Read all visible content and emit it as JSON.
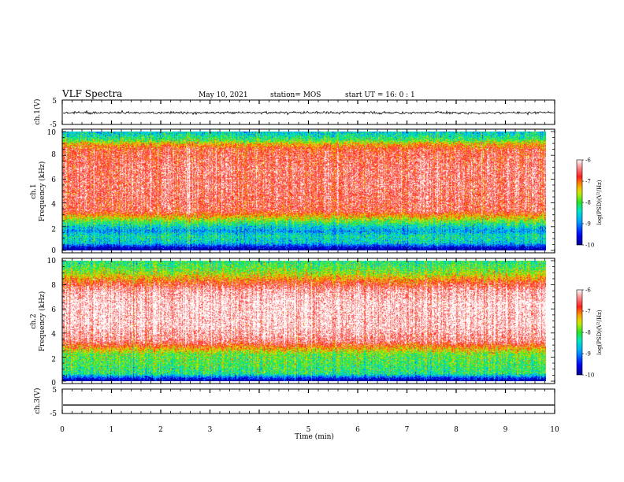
{
  "header": {
    "title": "VLF Spectra",
    "date": "May 10, 2021",
    "station": "station= MOS",
    "start": "start  UT =   16: 0  : 1"
  },
  "chart_data": [
    {
      "type": "line",
      "panel": "ch1-waveform",
      "ylabel": "ch.1(V)",
      "yticks": [
        "5",
        "-5"
      ],
      "ylim": [
        -5,
        5
      ],
      "series": [
        {
          "values_description_free": true,
          "level": -0.2,
          "noise": 0.25
        }
      ]
    },
    {
      "type": "heatmap",
      "panel": "ch1-spectrogram",
      "ylabel": "ch.1\nFrequency  (kHz)",
      "ylabel_lines": [
        "ch.1",
        "Frequency  (kHz)"
      ],
      "ylim": [
        0,
        10
      ],
      "yticks": [
        "0",
        "2",
        "4",
        "6",
        "8",
        "10"
      ],
      "xlim": [
        0,
        9.85
      ],
      "profile": [
        {
          "f": 0.0,
          "v": -10.0
        },
        {
          "f": 0.2,
          "v": -9.8
        },
        {
          "f": 0.6,
          "v": -8.6
        },
        {
          "f": 1.2,
          "v": -8.4
        },
        {
          "f": 1.6,
          "v": -8.9
        },
        {
          "f": 2.0,
          "v": -8.5
        },
        {
          "f": 2.5,
          "v": -7.8
        },
        {
          "f": 2.9,
          "v": -7.2
        },
        {
          "f": 3.3,
          "v": -6.6
        },
        {
          "f": 5.0,
          "v": -6.5
        },
        {
          "f": 7.0,
          "v": -6.5
        },
        {
          "f": 8.5,
          "v": -6.7
        },
        {
          "f": 9.0,
          "v": -7.3
        },
        {
          "f": 9.3,
          "v": -8.0
        },
        {
          "f": 9.7,
          "v": -8.4
        },
        {
          "f": 10.0,
          "v": -8.6
        }
      ],
      "colorbar": {
        "label": "log(PSD)(V²/Hz)",
        "ticks": [
          "-6",
          "-7",
          "-8",
          "-9",
          "-10"
        ],
        "range": [
          -10,
          -6
        ]
      }
    },
    {
      "type": "heatmap",
      "panel": "ch2-spectrogram",
      "ylabel_lines": [
        "ch.2",
        "Frequency  (kHz)"
      ],
      "ylim": [
        0,
        10
      ],
      "yticks": [
        "0",
        "2",
        "4",
        "6",
        "8",
        "10"
      ],
      "xlim": [
        0,
        9.85
      ],
      "profile": [
        {
          "f": 0.0,
          "v": -10.0
        },
        {
          "f": 0.2,
          "v": -9.5
        },
        {
          "f": 0.6,
          "v": -8.2
        },
        {
          "f": 1.5,
          "v": -8.0
        },
        {
          "f": 2.2,
          "v": -7.9
        },
        {
          "f": 2.8,
          "v": -7.1
        },
        {
          "f": 3.3,
          "v": -6.4
        },
        {
          "f": 4.5,
          "v": -6.1
        },
        {
          "f": 6.5,
          "v": -6.05
        },
        {
          "f": 7.6,
          "v": -6.3
        },
        {
          "f": 8.3,
          "v": -6.9
        },
        {
          "f": 8.9,
          "v": -7.6
        },
        {
          "f": 9.5,
          "v": -8.0
        },
        {
          "f": 10.0,
          "v": -8.2
        }
      ],
      "colorbar": {
        "label": "log(PSD)(V²/Hz)",
        "ticks": [
          "-6",
          "-7",
          "-8",
          "-9",
          "-10"
        ],
        "range": [
          -10,
          -6
        ]
      }
    },
    {
      "type": "line",
      "panel": "ch3-waveform",
      "ylabel": "ch.3(V)",
      "yticks": [
        "5",
        "-5"
      ],
      "ylim": [
        -5,
        5
      ],
      "series": [
        {
          "level": -1.5,
          "noise": 0.0
        }
      ],
      "xlabel": "Time  (min)",
      "xlim": [
        0,
        10
      ],
      "xticks": [
        "0",
        "1",
        "2",
        "3",
        "4",
        "5",
        "6",
        "7",
        "8",
        "9",
        "10"
      ]
    }
  ]
}
